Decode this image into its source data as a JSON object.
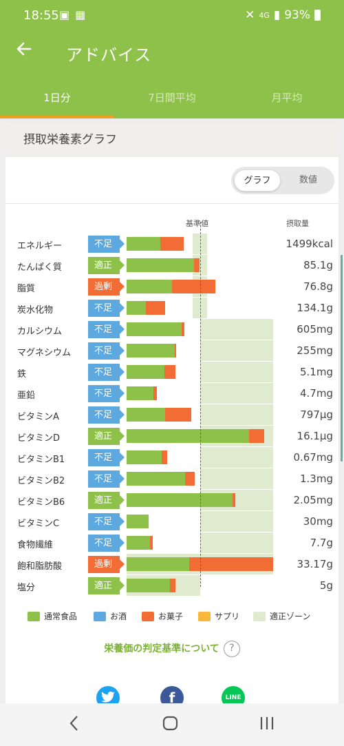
{
  "status_bar": {
    "time": "18:55",
    "signal_text": "4G",
    "battery": "93%"
  },
  "app_bar": {
    "title": "アドバイス"
  },
  "tabs": [
    {
      "label": "1日分",
      "active": true
    },
    {
      "label": "7日間平均",
      "active": false
    },
    {
      "label": "月平均",
      "active": false
    }
  ],
  "card": {
    "title": "摂取栄養素グラフ",
    "toggle": {
      "graph": "グラフ",
      "numbers": "数値",
      "selected": "グラフ"
    }
  },
  "chart_data": {
    "type": "bar",
    "stacked": true,
    "column_headers": {
      "reference": "基準値",
      "intake": "摂取量"
    },
    "reference_value_percent": 100,
    "series": [
      {
        "name": "通常食品",
        "color": "#8dc14a"
      },
      {
        "name": "お酒",
        "color": "#5da8df"
      },
      {
        "name": "お菓子",
        "color": "#f26c35"
      },
      {
        "name": "サプリ",
        "color": "#f8b93a"
      },
      {
        "name": "適正ゾーン",
        "color": "#dfeacf"
      }
    ],
    "rows": [
      {
        "nutrient": "エネルギー",
        "status": "不足",
        "level": "low",
        "food_pct": 46,
        "snack_pct": 32,
        "zone_from_pct": 90,
        "zone_to_pct": 110,
        "amount": "1499kcal"
      },
      {
        "nutrient": "たんぱく質",
        "status": "適正",
        "level": "ok",
        "food_pct": 92,
        "snack_pct": 8,
        "zone_from_pct": 90,
        "zone_to_pct": 110,
        "amount": "85.1g"
      },
      {
        "nutrient": "脂質",
        "status": "過剰",
        "level": "high",
        "food_pct": 62,
        "snack_pct": 59,
        "zone_from_pct": 90,
        "zone_to_pct": 110,
        "amount": "76.8g"
      },
      {
        "nutrient": "炭水化物",
        "status": "不足",
        "level": "low",
        "food_pct": 26,
        "snack_pct": 27,
        "zone_from_pct": 90,
        "zone_to_pct": 110,
        "amount": "134.1g"
      },
      {
        "nutrient": "カルシウム",
        "status": "不足",
        "level": "low",
        "food_pct": 75,
        "snack_pct": 4,
        "zone_from_pct": 100,
        "zone_to_pct": 200,
        "amount": "605mg"
      },
      {
        "nutrient": "マグネシウム",
        "status": "不足",
        "level": "low",
        "food_pct": 66,
        "snack_pct": 2,
        "zone_from_pct": 100,
        "zone_to_pct": 200,
        "amount": "255mg"
      },
      {
        "nutrient": "鉄",
        "status": "不足",
        "level": "low",
        "food_pct": 52,
        "snack_pct": 15,
        "zone_from_pct": 100,
        "zone_to_pct": 200,
        "amount": "5.1mg"
      },
      {
        "nutrient": "亜鉛",
        "status": "不足",
        "level": "low",
        "food_pct": 37,
        "snack_pct": 4,
        "zone_from_pct": 100,
        "zone_to_pct": 200,
        "amount": "4.7mg"
      },
      {
        "nutrient": "ビタミンA",
        "status": "不足",
        "level": "low",
        "food_pct": 53,
        "snack_pct": 35,
        "zone_from_pct": 100,
        "zone_to_pct": 200,
        "amount": "797μg"
      },
      {
        "nutrient": "ビタミンD",
        "status": "適正",
        "level": "ok",
        "food_pct": 167,
        "snack_pct": 21,
        "zone_from_pct": 100,
        "zone_to_pct": 200,
        "amount": "16.1μg"
      },
      {
        "nutrient": "ビタミンB1",
        "status": "不足",
        "level": "low",
        "food_pct": 48,
        "snack_pct": 7,
        "zone_from_pct": 100,
        "zone_to_pct": 200,
        "amount": "0.67mg"
      },
      {
        "nutrient": "ビタミンB2",
        "status": "不足",
        "level": "low",
        "food_pct": 80,
        "snack_pct": 13,
        "zone_from_pct": 100,
        "zone_to_pct": 200,
        "amount": "1.3mg"
      },
      {
        "nutrient": "ビタミンB6",
        "status": "適正",
        "level": "ok",
        "food_pct": 145,
        "snack_pct": 3,
        "zone_from_pct": 100,
        "zone_to_pct": 200,
        "amount": "2.05mg"
      },
      {
        "nutrient": "ビタミンC",
        "status": "不足",
        "level": "low",
        "food_pct": 30,
        "snack_pct": 0,
        "zone_from_pct": 100,
        "zone_to_pct": 200,
        "amount": "30mg"
      },
      {
        "nutrient": "食物繊維",
        "status": "不足",
        "level": "low",
        "food_pct": 32,
        "snack_pct": 4,
        "zone_from_pct": 100,
        "zone_to_pct": 200,
        "amount": "7.7g"
      },
      {
        "nutrient": "飽和脂肪酸",
        "status": "過剰",
        "level": "high",
        "food_pct": 85,
        "snack_pct": 115,
        "zone_from_pct": 0,
        "zone_to_pct": 200,
        "amount": "33.17g"
      },
      {
        "nutrient": "塩分",
        "status": "適正",
        "level": "ok",
        "food_pct": 59,
        "snack_pct": 8,
        "zone_from_pct": 0,
        "zone_to_pct": 100,
        "amount": "5g"
      }
    ]
  },
  "criteria_link": "栄養価の判定基準について",
  "share": [
    {
      "icon": "twitter-icon",
      "label": "",
      "color": "#1da1f2"
    },
    {
      "icon": "facebook-icon",
      "label": "f",
      "color": "#3b5998"
    },
    {
      "icon": "line-icon",
      "label": "LINE",
      "color": "#06c755"
    }
  ]
}
